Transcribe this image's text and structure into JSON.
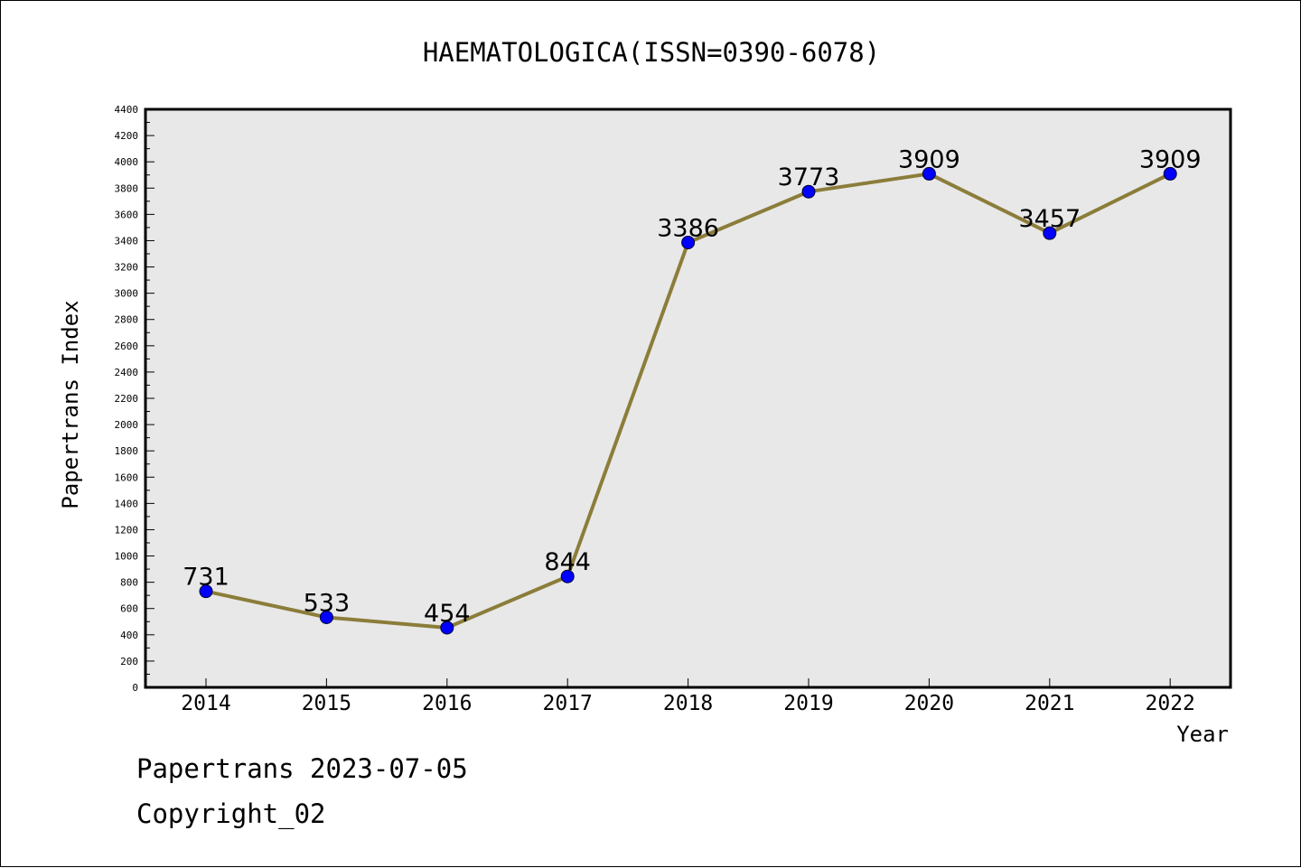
{
  "chart_data": {
    "type": "line",
    "title": "HAEMATOLOGICA(ISSN=0390-6078)",
    "xlabel": "Year",
    "ylabel": "Papertrans Index",
    "categories": [
      "2014",
      "2015",
      "2016",
      "2017",
      "2018",
      "2019",
      "2020",
      "2021",
      "2022"
    ],
    "series": [
      {
        "values": [
          731,
          533,
          454,
          844,
          3386,
          3773,
          3909,
          3457,
          3909
        ],
        "line_color": "#8b7d3a",
        "marker_color": "#0000ff"
      }
    ],
    "data_labels": [
      "731",
      "533",
      "454",
      "844",
      "3386",
      "3773",
      "3909",
      "3457",
      "3909"
    ],
    "ylim": [
      0,
      4400
    ],
    "y_major_step": 200,
    "y_minor_step": 100,
    "plot_background": "#e8e8e8",
    "grid": false,
    "legend": "none"
  },
  "footer": {
    "line1": "Papertrans 2023-07-05",
    "line2": "Copyright_02"
  }
}
